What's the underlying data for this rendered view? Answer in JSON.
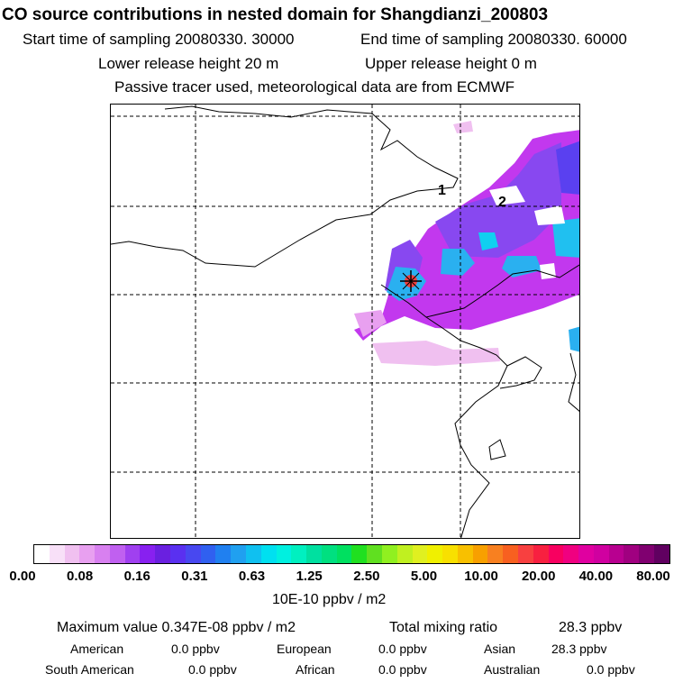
{
  "title": "CO  source contributions in nested domain for Shangdianzi_200803",
  "header": {
    "start_label": "Start time of sampling 20080330. 30000",
    "end_label": "End time of sampling 20080330. 60000",
    "lower_label": "Lower release height   20 m",
    "upper_label": "Upper release height    0 m",
    "tracer_note": "Passive tracer used, meteorological data are from ECMWF"
  },
  "map": {
    "markers": [
      {
        "label": "1"
      },
      {
        "label": "2"
      }
    ],
    "station_marker": "receptor-star"
  },
  "colorbar": {
    "ticks": [
      "0.00",
      "0.08",
      "0.16",
      "0.31",
      "0.63",
      "1.25",
      "2.50",
      "5.00",
      "10.00",
      "20.00",
      "40.00",
      "80.00"
    ],
    "colors": [
      "#ffffff",
      "#f8e0f8",
      "#f0c0f0",
      "#e8a0f0",
      "#d880f0",
      "#c060f0",
      "#a040f0",
      "#8820f0",
      "#6a20e0",
      "#5a30f0",
      "#4848f0",
      "#3060f0",
      "#2080f0",
      "#20a0f0",
      "#10c0f0",
      "#00e0f0",
      "#00f0e0",
      "#00f0c0",
      "#00e0a0",
      "#00e080",
      "#00e060",
      "#20e020",
      "#60e020",
      "#90f020",
      "#c0f020",
      "#e0f020",
      "#f0f000",
      "#f8e000",
      "#f8c000",
      "#f8a000",
      "#f88020",
      "#f86020",
      "#f84040",
      "#f82040",
      "#f80060",
      "#f00080",
      "#e000a0",
      "#d000a0",
      "#b80090",
      "#a00080",
      "#800070",
      "#600060"
    ],
    "unit": "10E-10 ppbv / m2"
  },
  "summary": {
    "maximum": "Maximum value  0.347E-08 ppbv / m2",
    "total": "Total mixing ratio",
    "total_value": "28.3 ppbv",
    "american_label": "American",
    "american_value": "0.0 ppbv",
    "european_label": "European",
    "european_value": "0.0 ppbv",
    "asian_label": "Asian",
    "asian_value": "28.3 ppbv",
    "south_american_label": "South American",
    "south_american_value": "0.0 ppbv",
    "african_label": "African",
    "african_value": "0.0 ppbv",
    "australian_label": "Australian",
    "australian_value": "0.0 ppbv"
  }
}
